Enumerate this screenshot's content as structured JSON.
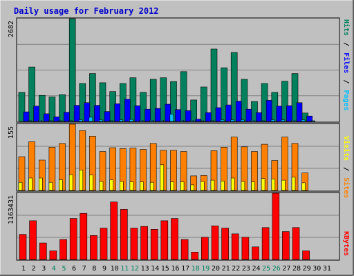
{
  "title": "Daily usage for February 2012",
  "colors": {
    "background": "#c0c0c0",
    "title": "#0000cc",
    "hits": "#00805c",
    "files": "#0000ff",
    "pages": "#00c0ff",
    "visits": "#ffff00",
    "sites": "#ff8000",
    "kbytes": "#ff0000",
    "weekend_label": "#00805c",
    "weekday_label": "#000000"
  },
  "chart_data": [
    {
      "type": "bar",
      "ylabel_parts": [
        "Pages",
        "/",
        "Files",
        "/",
        "Hits"
      ],
      "max_label": "2682",
      "ylim": [
        0,
        2682
      ],
      "grid": true,
      "categories": [
        "1",
        "2",
        "3",
        "4",
        "5",
        "6",
        "7",
        "8",
        "9",
        "10",
        "11",
        "12",
        "13",
        "14",
        "15",
        "16",
        "17",
        "18",
        "19",
        "20",
        "21",
        "22",
        "23",
        "24",
        "25",
        "26",
        "27",
        "28",
        "29",
        "30",
        "31"
      ],
      "series": [
        {
          "name": "Hits",
          "values": [
            760,
            1420,
            680,
            640,
            700,
            2680,
            990,
            1250,
            1010,
            780,
            990,
            1140,
            760,
            1100,
            1140,
            1040,
            1300,
            560,
            900,
            1890,
            1400,
            1800,
            1100,
            520,
            990,
            760,
            1050,
            1250,
            220,
            null,
            null
          ]
        },
        {
          "name": "Files",
          "values": [
            250,
            400,
            200,
            120,
            240,
            420,
            490,
            420,
            260,
            460,
            580,
            410,
            320,
            340,
            450,
            310,
            280,
            60,
            230,
            360,
            430,
            530,
            320,
            230,
            550,
            400,
            410,
            490,
            140,
            null,
            null
          ]
        },
        {
          "name": "Pages",
          "values": [
            20,
            30,
            20,
            10,
            20,
            40,
            110,
            40,
            20,
            40,
            50,
            30,
            30,
            30,
            190,
            30,
            30,
            10,
            20,
            40,
            40,
            40,
            30,
            20,
            40,
            40,
            30,
            40,
            10,
            null,
            null
          ]
        }
      ]
    },
    {
      "type": "bar",
      "ylabel_parts": [
        "Sites",
        "/",
        "Visits"
      ],
      "max_label": "155",
      "ylim": [
        0,
        155
      ],
      "grid": true,
      "categories": [
        "1",
        "2",
        "3",
        "4",
        "5",
        "6",
        "7",
        "8",
        "9",
        "10",
        "11",
        "12",
        "13",
        "14",
        "15",
        "16",
        "17",
        "18",
        "19",
        "20",
        "21",
        "22",
        "23",
        "24",
        "25",
        "26",
        "27",
        "28",
        "29",
        "30",
        "31"
      ],
      "series": [
        {
          "name": "Sites",
          "values": [
            79,
            114,
            71,
            101,
            110,
            155,
            140,
            127,
            91,
            100,
            98,
            99,
            96,
            110,
            94,
            94,
            91,
            34,
            35,
            93,
            101,
            125,
            102,
            91,
            108,
            70,
            125,
            110,
            41,
            null,
            null
          ]
        },
        {
          "name": "Visits",
          "values": [
            19,
            29,
            29,
            19,
            25,
            37,
            48,
            36,
            21,
            25,
            21,
            20,
            20,
            19,
            60,
            20,
            20,
            13,
            21,
            24,
            22,
            29,
            21,
            20,
            28,
            27,
            24,
            31,
            18,
            null,
            null
          ]
        }
      ]
    },
    {
      "type": "bar",
      "ylabel_parts": [
        "KBytes"
      ],
      "max_label": "1163431",
      "ylim": [
        0,
        1163431
      ],
      "grid": true,
      "categories": [
        "1",
        "2",
        "3",
        "4",
        "5",
        "6",
        "7",
        "8",
        "9",
        "10",
        "11",
        "12",
        "13",
        "14",
        "15",
        "16",
        "17",
        "18",
        "19",
        "20",
        "21",
        "22",
        "23",
        "24",
        "25",
        "26",
        "27",
        "28",
        "29",
        "30",
        "31"
      ],
      "series": [
        {
          "name": "KBytes",
          "values": [
            440000,
            680000,
            290000,
            150000,
            350000,
            720000,
            810000,
            420000,
            550000,
            1010000,
            880000,
            550000,
            580000,
            530000,
            680000,
            720000,
            350000,
            130000,
            390000,
            590000,
            550000,
            450000,
            390000,
            220000,
            560000,
            1163431,
            490000,
            560000,
            150000,
            null,
            null
          ]
        }
      ]
    }
  ],
  "x_axis": {
    "labels": [
      "1",
      "2",
      "3",
      "4",
      "5",
      "6",
      "7",
      "8",
      "9",
      "10",
      "11",
      "12",
      "13",
      "14",
      "15",
      "16",
      "17",
      "18",
      "19",
      "20",
      "21",
      "22",
      "23",
      "24",
      "25",
      "26",
      "27",
      "28",
      "29",
      "30",
      "31"
    ],
    "weekend_days": [
      "4",
      "5",
      "11",
      "12",
      "18",
      "19",
      "25",
      "26"
    ]
  }
}
